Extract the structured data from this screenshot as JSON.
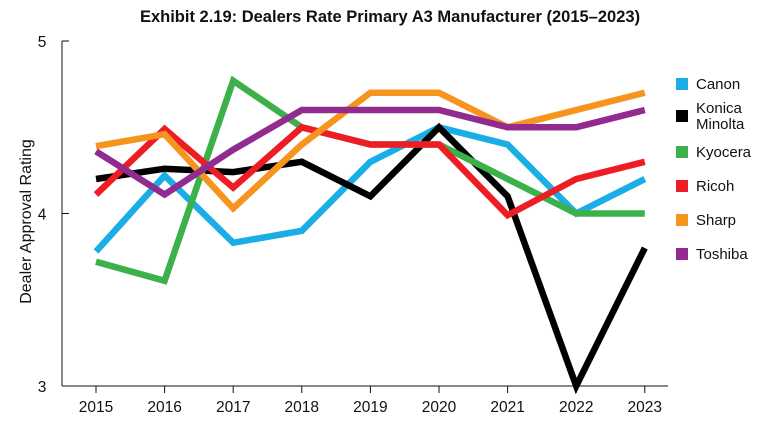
{
  "chart_data": {
    "type": "line",
    "title": "Exhibit 2.19: Dealers Rate Primary A3 Manufacturer (2015–2023)",
    "xlabel": "",
    "ylabel": "Dealer Approval Rating",
    "categories": [
      "2015",
      "2016",
      "2017",
      "2018",
      "2019",
      "2020",
      "2021",
      "2022",
      "2023"
    ],
    "ylim": [
      3,
      5
    ],
    "yticks": [
      3,
      4,
      5
    ],
    "grid": false,
    "legend_position": "right",
    "series": [
      {
        "name": "Canon",
        "label_lines": [
          "Canon"
        ],
        "color": "#1aaee6",
        "values": [
          3.78,
          4.22,
          3.83,
          3.9,
          4.3,
          4.5,
          4.4,
          4.0,
          4.2
        ]
      },
      {
        "name": "Konica Minolta",
        "label_lines": [
          "Konica",
          "Minolta"
        ],
        "color": "#000000",
        "values": [
          4.2,
          4.26,
          4.24,
          4.3,
          4.1,
          4.5,
          4.1,
          3.0,
          3.8
        ]
      },
      {
        "name": "Kyocera",
        "label_lines": [
          "Kyocera"
        ],
        "color": "#3cb14a",
        "values": [
          3.72,
          3.61,
          4.77,
          4.5,
          4.4,
          4.4,
          4.2,
          4.0,
          4.0
        ]
      },
      {
        "name": "Ricoh",
        "label_lines": [
          "Ricoh"
        ],
        "color": "#ee1c25",
        "values": [
          4.11,
          4.49,
          4.15,
          4.5,
          4.4,
          4.4,
          3.99,
          4.2,
          4.3
        ]
      },
      {
        "name": "Sharp",
        "label_lines": [
          "Sharp"
        ],
        "color": "#f7941e",
        "values": [
          4.39,
          4.46,
          4.03,
          4.4,
          4.7,
          4.7,
          4.5,
          4.6,
          4.7
        ]
      },
      {
        "name": "Toshiba",
        "label_lines": [
          "Toshiba"
        ],
        "color": "#922b8f",
        "values": [
          4.36,
          4.11,
          4.37,
          4.6,
          4.6,
          4.6,
          4.5,
          4.5,
          4.6
        ]
      }
    ]
  }
}
